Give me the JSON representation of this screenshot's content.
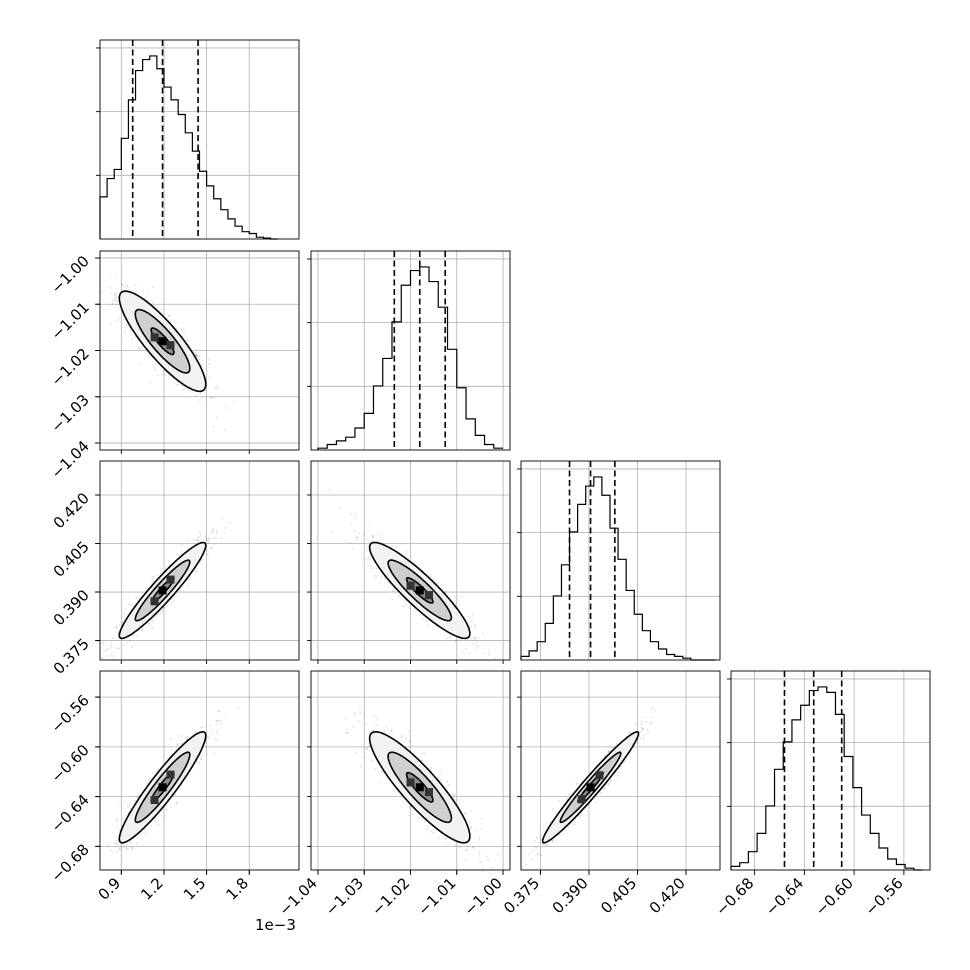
{
  "chart_data": {
    "type": "corner",
    "grid": true,
    "x_offset_label": "1e−3",
    "parameters": [
      {
        "range": [
          0.75,
          2.15
        ],
        "ticks": [
          0.9,
          1.2,
          1.5,
          1.8
        ],
        "tick_labels": [
          "0.9",
          "1.2",
          "1.5",
          "1.8"
        ],
        "quantiles": [
          0.98,
          1.19,
          1.44
        ],
        "hist_bins": [
          0.75,
          0.8,
          0.85,
          0.9,
          0.95,
          1.0,
          1.05,
          1.1,
          1.15,
          1.2,
          1.25,
          1.3,
          1.35,
          1.4,
          1.45,
          1.5,
          1.55,
          1.6,
          1.65,
          1.7,
          1.75,
          1.8,
          1.85,
          1.9,
          1.95,
          2.0
        ],
        "hist_counts": [
          0.23,
          0.33,
          0.38,
          0.55,
          0.76,
          0.92,
          0.98,
          1.0,
          0.93,
          0.83,
          0.76,
          0.68,
          0.58,
          0.48,
          0.37,
          0.29,
          0.22,
          0.16,
          0.11,
          0.07,
          0.04,
          0.03,
          0.01,
          0.005,
          0.0
        ]
      },
      {
        "range": [
          -1.0415,
          -0.9985
        ],
        "ticks": [
          -1.04,
          -1.03,
          -1.02,
          -1.01,
          -1.0
        ],
        "tick_labels": [
          "−1.04",
          "−1.03",
          "−1.02",
          "−1.01",
          "−1.00"
        ],
        "quantiles": [
          -1.0235,
          -1.018,
          -1.0125
        ],
        "hist_bins": [
          -1.04,
          -1.038,
          -1.036,
          -1.034,
          -1.032,
          -1.03,
          -1.028,
          -1.026,
          -1.024,
          -1.022,
          -1.02,
          -1.018,
          -1.016,
          -1.014,
          -1.012,
          -1.01,
          -1.008,
          -1.006,
          -1.004,
          -1.002,
          -1.0
        ],
        "hist_counts": [
          0.01,
          0.03,
          0.05,
          0.07,
          0.12,
          0.2,
          0.35,
          0.5,
          0.7,
          0.9,
          0.98,
          1.0,
          0.92,
          0.78,
          0.55,
          0.34,
          0.17,
          0.08,
          0.03,
          0.01
        ]
      },
      {
        "range": [
          0.369,
          0.4305
        ],
        "ticks": [
          0.375,
          0.39,
          0.405,
          0.42
        ],
        "tick_labels": [
          "0.375",
          "0.390",
          "0.405",
          "0.420"
        ],
        "quantiles": [
          0.384,
          0.3905,
          0.398
        ],
        "hist_bins": [
          0.369,
          0.3715,
          0.374,
          0.3765,
          0.379,
          0.3815,
          0.384,
          0.3865,
          0.389,
          0.3915,
          0.394,
          0.3965,
          0.399,
          0.4015,
          0.404,
          0.4065,
          0.409,
          0.4115,
          0.414,
          0.4165,
          0.419,
          0.4215,
          0.424,
          0.4265,
          0.429
        ],
        "hist_counts": [
          0.02,
          0.05,
          0.1,
          0.2,
          0.35,
          0.52,
          0.7,
          0.85,
          0.95,
          1.0,
          0.9,
          0.72,
          0.55,
          0.38,
          0.25,
          0.16,
          0.1,
          0.06,
          0.03,
          0.02,
          0.01,
          0.0,
          0.0,
          0.0
        ]
      },
      {
        "range": [
          -0.699,
          -0.539
        ],
        "ticks": [
          -0.68,
          -0.64,
          -0.6,
          -0.56
        ],
        "tick_labels": [
          "−0.68",
          "−0.64",
          "−0.60",
          "−0.56"
        ],
        "quantiles": [
          -0.656,
          -0.6325,
          -0.61
        ],
        "hist_bins": [
          -0.699,
          -0.692,
          -0.685,
          -0.678,
          -0.671,
          -0.664,
          -0.657,
          -0.65,
          -0.643,
          -0.636,
          -0.629,
          -0.622,
          -0.615,
          -0.608,
          -0.601,
          -0.594,
          -0.587,
          -0.58,
          -0.573,
          -0.566,
          -0.559,
          -0.552,
          -0.545
        ],
        "hist_counts": [
          0.02,
          0.04,
          0.1,
          0.2,
          0.35,
          0.55,
          0.7,
          0.82,
          0.9,
          0.98,
          1.0,
          0.97,
          0.85,
          0.62,
          0.45,
          0.3,
          0.2,
          0.12,
          0.06,
          0.03,
          0.01,
          0.0
        ]
      }
    ],
    "correlations": [
      {
        "row": 1,
        "col": 0,
        "mean": [
          1.19,
          -1.018
        ],
        "sd": [
          0.16,
          0.0057
        ],
        "rho": -0.86
      },
      {
        "row": 2,
        "col": 0,
        "mean": [
          1.19,
          0.3905
        ],
        "sd": [
          0.16,
          0.0078
        ],
        "rho": 0.94
      },
      {
        "row": 2,
        "col": 1,
        "mean": [
          -1.018,
          0.3905
        ],
        "sd": [
          0.0057,
          0.0078
        ],
        "rho": -0.9
      },
      {
        "row": 3,
        "col": 0,
        "mean": [
          1.19,
          -0.6325
        ],
        "sd": [
          0.16,
          0.0235
        ],
        "rho": 0.93
      },
      {
        "row": 3,
        "col": 1,
        "mean": [
          -1.018,
          -0.6325
        ],
        "sd": [
          0.0057,
          0.0235
        ],
        "rho": -0.88
      },
      {
        "row": 3,
        "col": 2,
        "mean": [
          0.3905,
          -0.6325
        ],
        "sd": [
          0.0078,
          0.0235
        ],
        "rho": 0.97
      }
    ]
  }
}
